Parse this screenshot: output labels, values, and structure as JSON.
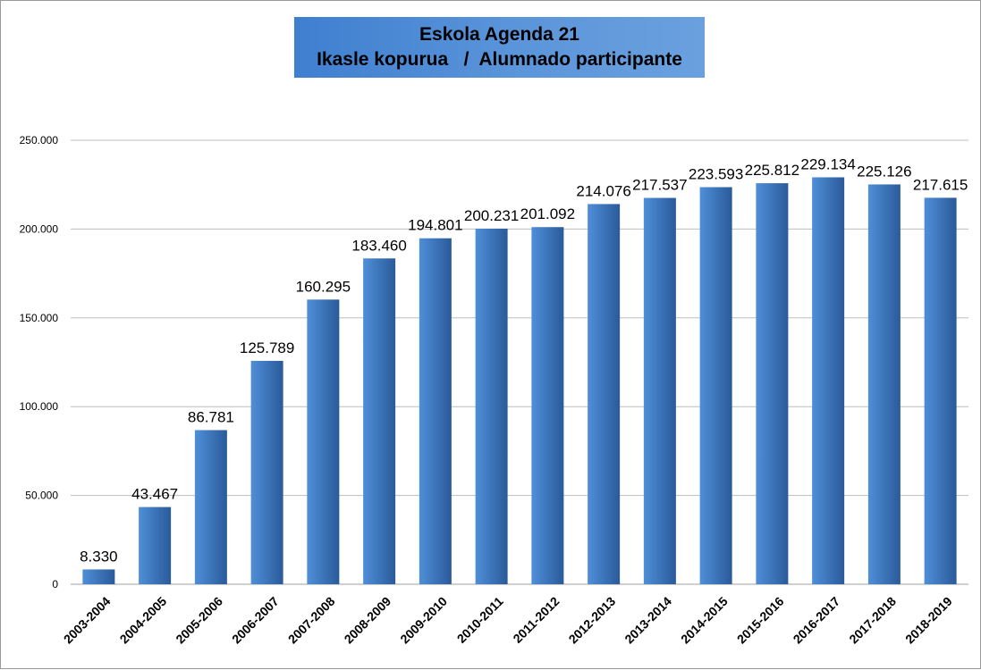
{
  "chart_data": {
    "type": "bar",
    "title_line1": "Eskola Agenda 21",
    "title_line2": "Ikasle kopurua   /  Alumnado participante",
    "categories": [
      "2003-2004",
      "2004-2005",
      "2005-2006",
      "2006-2007",
      "2007-2008",
      "2008-2009",
      "2009-2010",
      "2010-2011",
      "2011-2012",
      "2012-2013",
      "2013-2014",
      "2014-2015",
      "2015-2016",
      "2016-2017",
      "2017-2018",
      "2018-2019"
    ],
    "values": [
      8330,
      43467,
      86781,
      125789,
      160295,
      183460,
      194801,
      200231,
      201092,
      214076,
      217537,
      223593,
      225812,
      229134,
      225126,
      217615
    ],
    "data_labels": [
      "8.330",
      "43.467",
      "86.781",
      "125.789",
      "160.295",
      "183.460",
      "194.801",
      "200.231",
      "201.092",
      "214.076",
      "217.537",
      "223.593",
      "225.812",
      "229.134",
      "225.126",
      "217.615"
    ],
    "y_ticks": [
      0,
      50000,
      100000,
      150000,
      200000,
      250000
    ],
    "y_tick_labels": [
      "0",
      "50.000",
      "100.000",
      "150.000",
      "200.000",
      "250.000"
    ],
    "ylim": [
      0,
      250000
    ],
    "xlabel": "",
    "ylabel": "",
    "grid": true,
    "bar_color": "#4f8fd8",
    "bar_color_dark": "#2a5a9a"
  }
}
